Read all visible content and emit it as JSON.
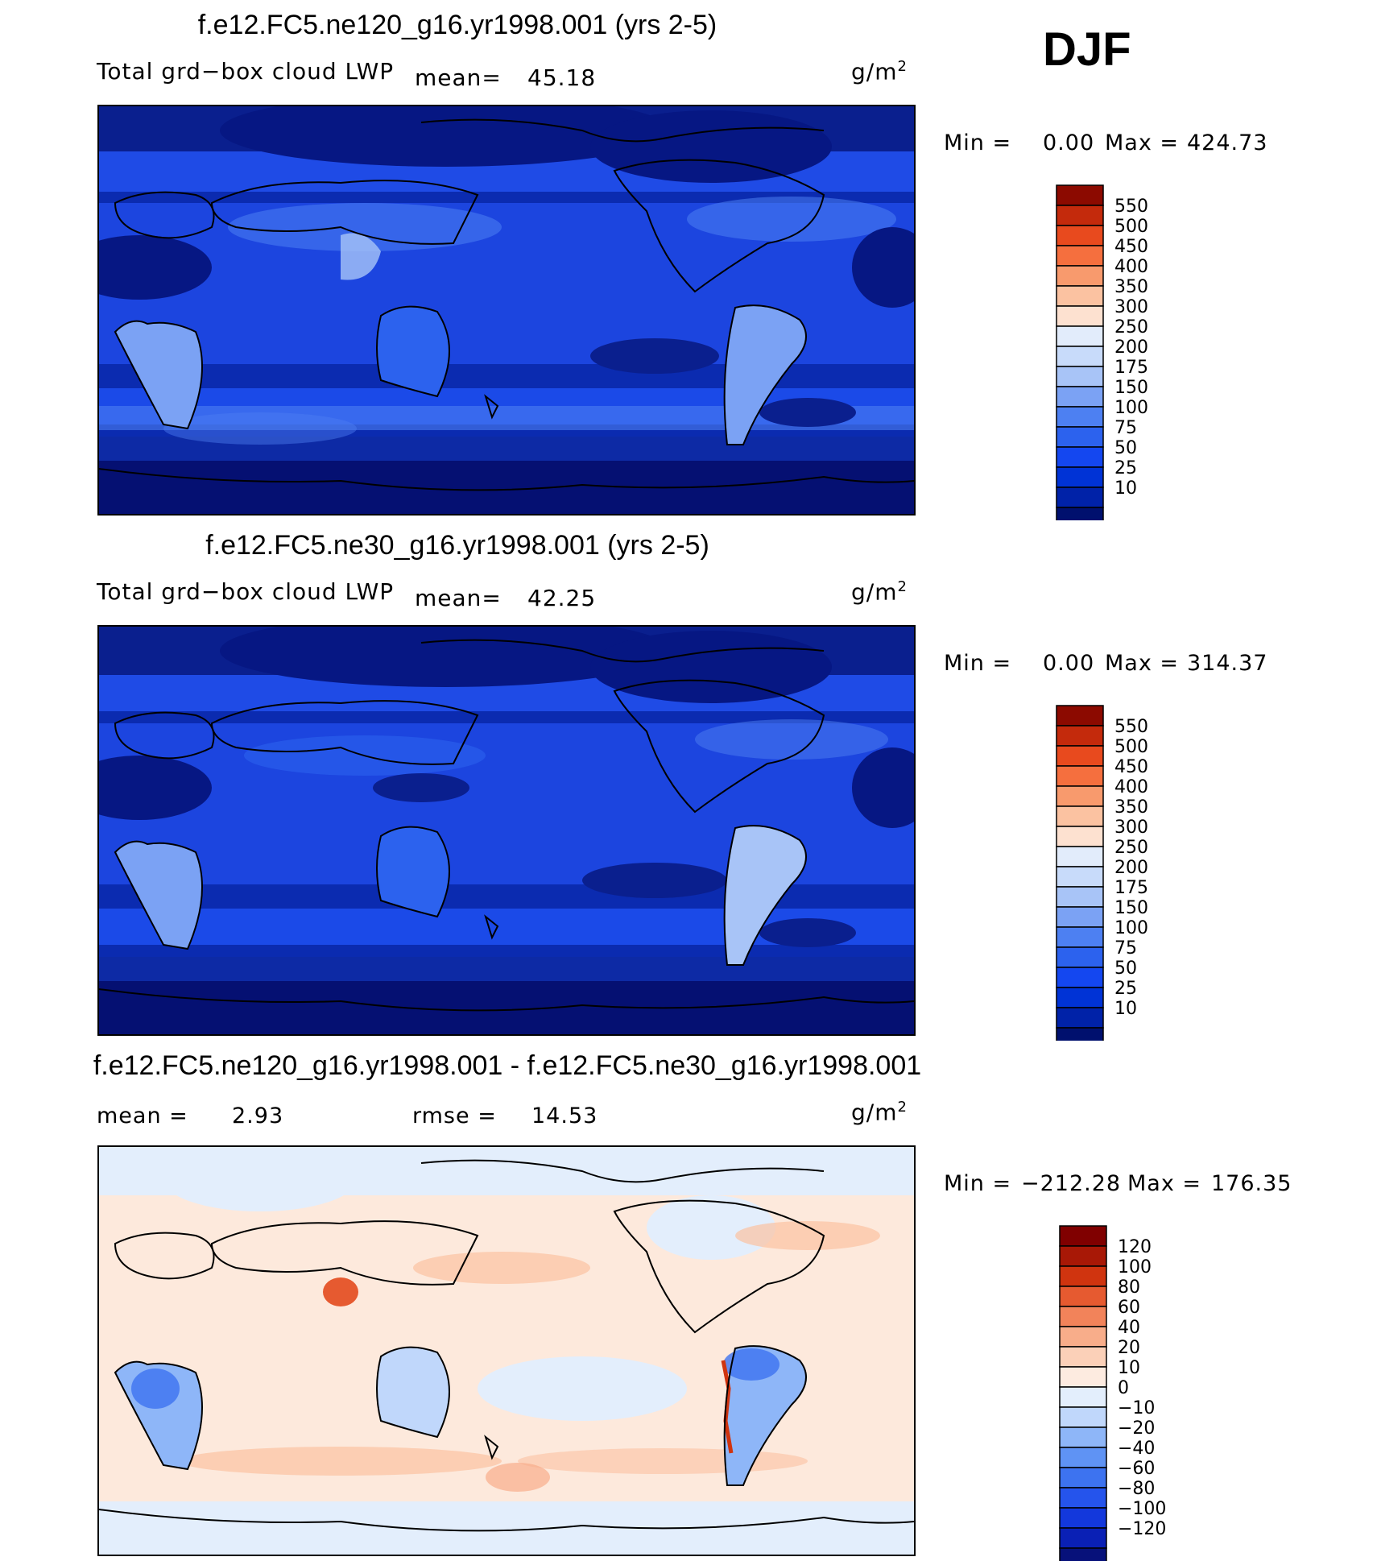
{
  "season": "DJF",
  "panels": [
    {
      "title": "f.e12.FC5.ne120_g16.yr1998.001 (yrs 2-5)",
      "variable": "Total grd−box cloud LWP",
      "mean_label": "mean=",
      "mean_value": "45.18",
      "units": "g/m",
      "units_sup": "2",
      "min_label": "Min =",
      "min_value": "0.00",
      "max_label": "Max =",
      "max_value": "424.73",
      "palette": "lwp",
      "levels": [
        "550",
        "500",
        "450",
        "400",
        "350",
        "300",
        "250",
        "200",
        "175",
        "150",
        "100",
        "75",
        "50",
        "25",
        "10"
      ]
    },
    {
      "title": "f.e12.FC5.ne30_g16.yr1998.001 (yrs 2-5)",
      "variable": "Total grd−box cloud LWP",
      "mean_label": "mean=",
      "mean_value": "42.25",
      "units": "g/m",
      "units_sup": "2",
      "min_label": "Min =",
      "min_value": "0.00",
      "max_label": "Max =",
      "max_value": "314.37",
      "palette": "lwp",
      "levels": [
        "550",
        "500",
        "450",
        "400",
        "350",
        "300",
        "250",
        "200",
        "175",
        "150",
        "100",
        "75",
        "50",
        "25",
        "10"
      ]
    },
    {
      "title": "f.e12.FC5.ne120_g16.yr1998.001 - f.e12.FC5.ne30_g16.yr1998.001",
      "mean_label": "mean =",
      "mean_value": "2.93",
      "rmse_label": "rmse =",
      "rmse_value": "14.53",
      "units": "g/m",
      "units_sup": "2",
      "min_label": "Min =",
      "min_value": "−212.28",
      "max_label": "Max =",
      "max_value": "176.35",
      "palette": "diff",
      "levels": [
        "120",
        "100",
        "80",
        "60",
        "40",
        "20",
        "10",
        "0",
        "−10",
        "−20",
        "−40",
        "−60",
        "−80",
        "−100",
        "−120"
      ]
    }
  ],
  "chart_data": [
    {
      "type": "heatmap",
      "title": "f.e12.FC5.ne120_g16.yr1998.001 (yrs 2-5)",
      "subtitle": "Total grd−box cloud LWP",
      "units": "g/m2",
      "mean": 45.18,
      "min": 0.0,
      "max": 424.73,
      "colorbar_levels": [
        10,
        25,
        50,
        75,
        100,
        150,
        175,
        200,
        250,
        300,
        350,
        400,
        450,
        500,
        550
      ],
      "colorbar_colors": [
        "#00106e",
        "#0022a8",
        "#0033d6",
        "#1447f0",
        "#2c62ee",
        "#4d80f2",
        "#7ba2f4",
        "#a8c4f7",
        "#c8dbfa",
        "#e2ecfb",
        "#fde1d0",
        "#fbc2a1",
        "#f89a6d",
        "#f56f3e",
        "#e84a1e",
        "#c42a0c",
        "#8c0a00"
      ],
      "features": [
        "subtropical stratocumulus low values",
        "storm-track maxima near 40-60 latitude",
        "high values over tropical land"
      ]
    },
    {
      "type": "heatmap",
      "title": "f.e12.FC5.ne30_g16.yr1998.001 (yrs 2-5)",
      "subtitle": "Total grd−box cloud LWP",
      "units": "g/m2",
      "mean": 42.25,
      "min": 0.0,
      "max": 314.37,
      "colorbar_levels": [
        10,
        25,
        50,
        75,
        100,
        150,
        175,
        200,
        250,
        300,
        350,
        400,
        450,
        500,
        550
      ],
      "colorbar_colors": [
        "#00106e",
        "#0022a8",
        "#0033d6",
        "#1447f0",
        "#2c62ee",
        "#4d80f2",
        "#7ba2f4",
        "#a8c4f7",
        "#c8dbfa",
        "#e2ecfb",
        "#fde1d0",
        "#fbc2a1",
        "#f89a6d",
        "#f56f3e",
        "#e84a1e",
        "#c42a0c",
        "#8c0a00"
      ]
    },
    {
      "type": "heatmap",
      "title": "f.e12.FC5.ne120_g16.yr1998.001 - f.e12.FC5.ne30_g16.yr1998.001",
      "units": "g/m2",
      "mean": 2.93,
      "rmse": 14.53,
      "min": -212.28,
      "max": 176.35,
      "colorbar_levels": [
        -120,
        -100,
        -80,
        -60,
        -40,
        -20,
        -10,
        0,
        10,
        20,
        40,
        60,
        80,
        100,
        120
      ],
      "colorbar_colors": [
        "#07117a",
        "#0a20b5",
        "#1338dc",
        "#2554ec",
        "#3d73f0",
        "#5f93f4",
        "#8eb6f8",
        "#c0d7fb",
        "#e3eefc",
        "#fdebe0",
        "#fbd0b8",
        "#f8ad8a",
        "#f2835a",
        "#e65a30",
        "#d0340f",
        "#a81806",
        "#800000"
      ]
    }
  ]
}
